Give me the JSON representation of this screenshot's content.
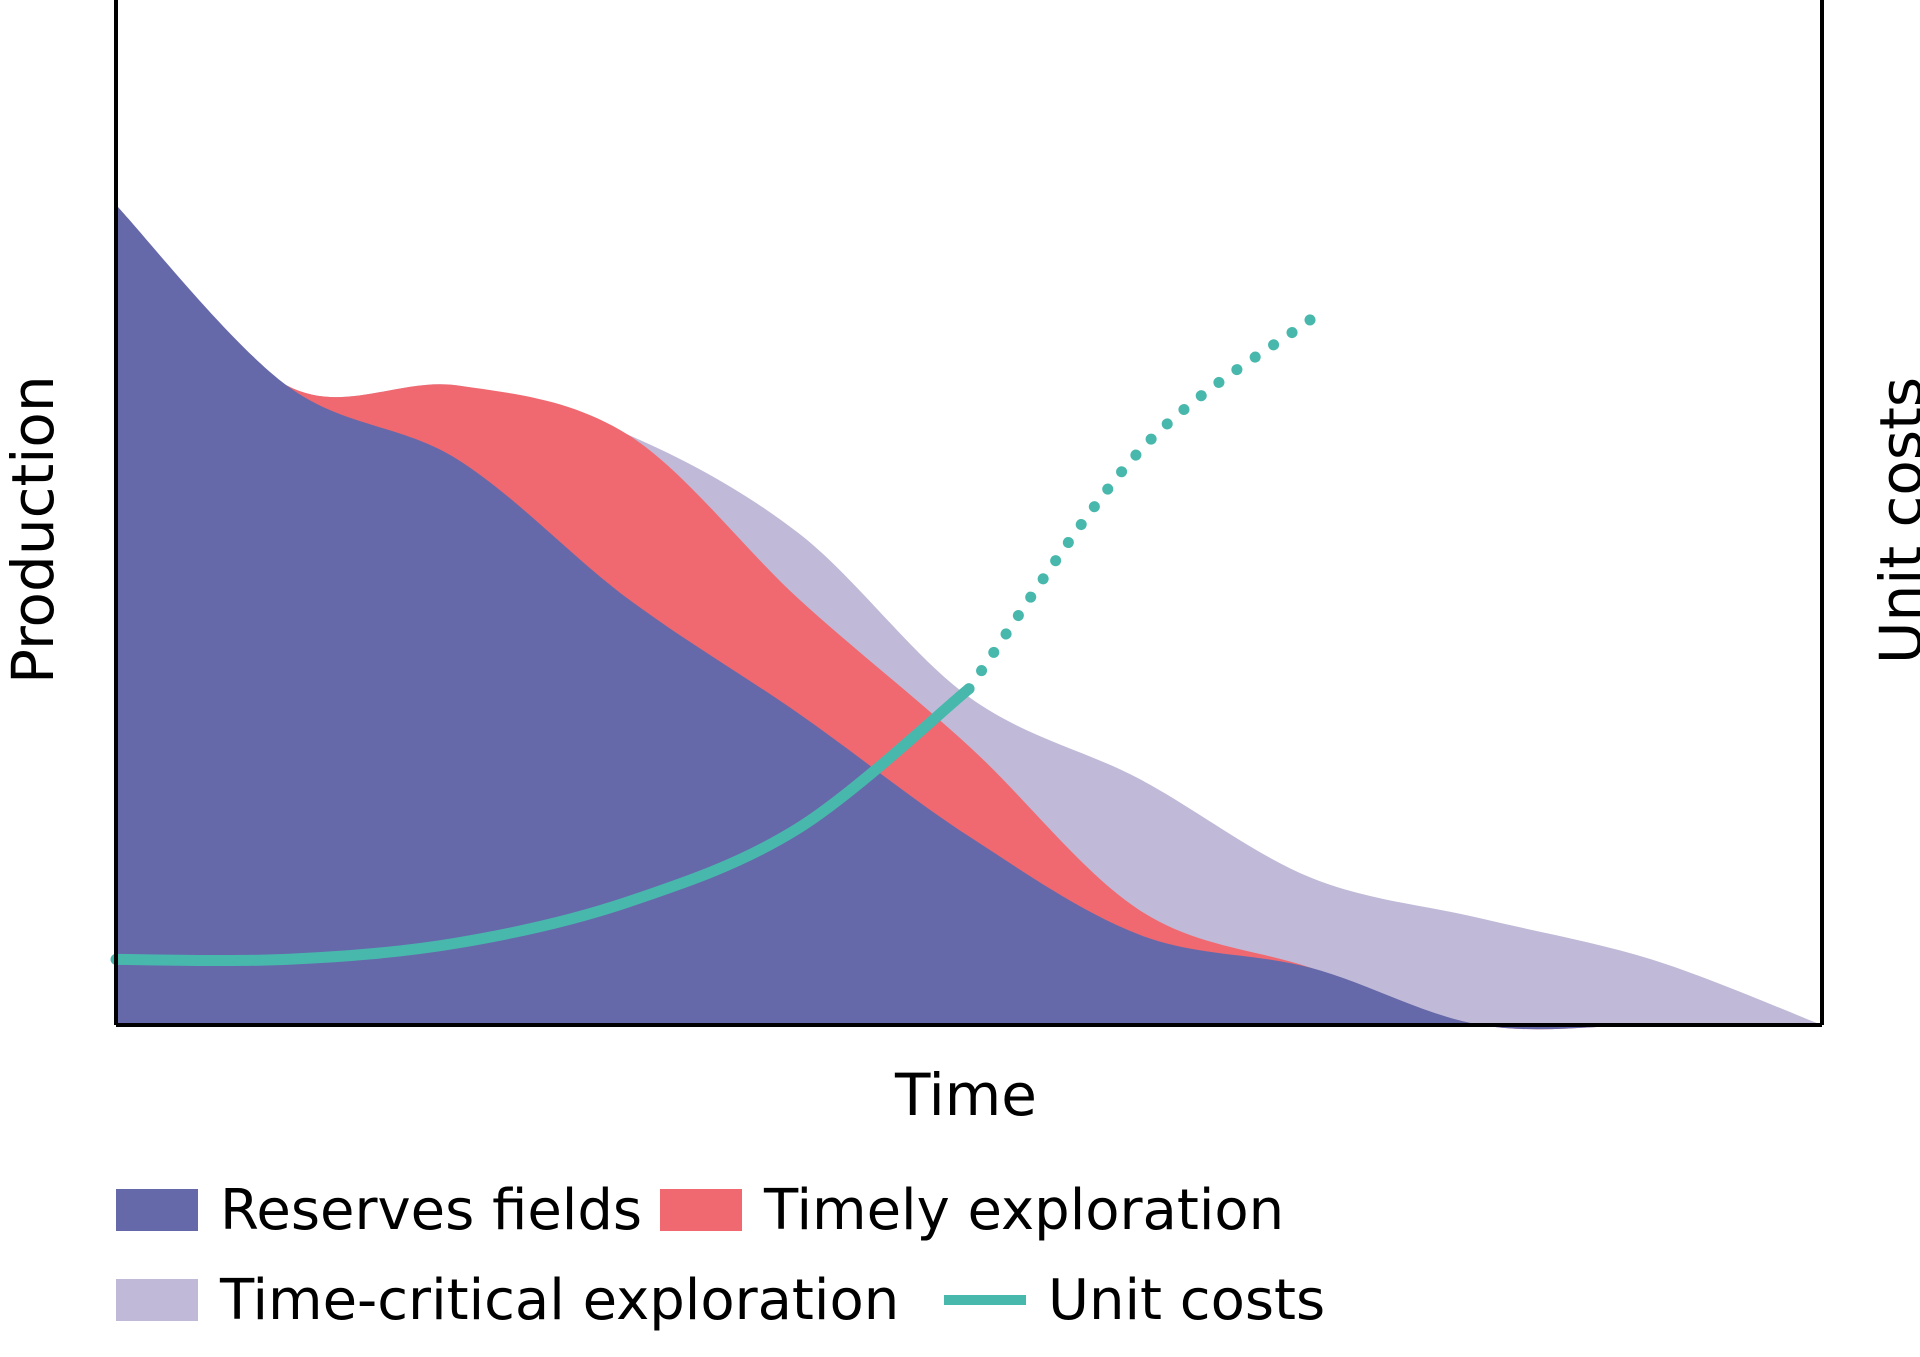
{
  "chart_data": {
    "type": "area",
    "title": "",
    "xlabel": "Time",
    "ylabel": "Production",
    "y2label": "Unit costs",
    "x": [
      0,
      1,
      2,
      3,
      4,
      5,
      6,
      7,
      8,
      9,
      10
    ],
    "series": [
      {
        "name": "Reserves fields",
        "kind": "area",
        "color": "#6669a9",
        "values": [
          100,
          78,
          69,
          52,
          38,
          23,
          11,
          7,
          0,
          0,
          0
        ]
      },
      {
        "name": "Timely exploration",
        "kind": "area",
        "color": "#f06970",
        "values": [
          100,
          78,
          78,
          72,
          52,
          34,
          14,
          7,
          0,
          0,
          0
        ]
      },
      {
        "name": "Time-critical exploration",
        "kind": "area",
        "color": "#c0bad8",
        "values": [
          100,
          78,
          78,
          72,
          60,
          40,
          30,
          18,
          13,
          8,
          0
        ]
      },
      {
        "name": "Unit costs",
        "kind": "line",
        "color": "#48b8ad",
        "values": [
          8,
          8,
          10,
          15,
          24,
          41,
          70,
          86,
          null,
          null,
          null
        ],
        "dotted_from_index": 5
      }
    ],
    "legend": [
      {
        "label": "Reserves fields",
        "color": "#6669a9",
        "kind": "swatch"
      },
      {
        "label": "Timely exploration",
        "color": "#f06970",
        "kind": "swatch"
      },
      {
        "label": "Time-critical exploration",
        "color": "#c0bad8",
        "kind": "swatch"
      },
      {
        "label": "Unit costs",
        "color": "#48b8ad",
        "kind": "line"
      }
    ],
    "legend_position": "bottom",
    "grid": false
  }
}
